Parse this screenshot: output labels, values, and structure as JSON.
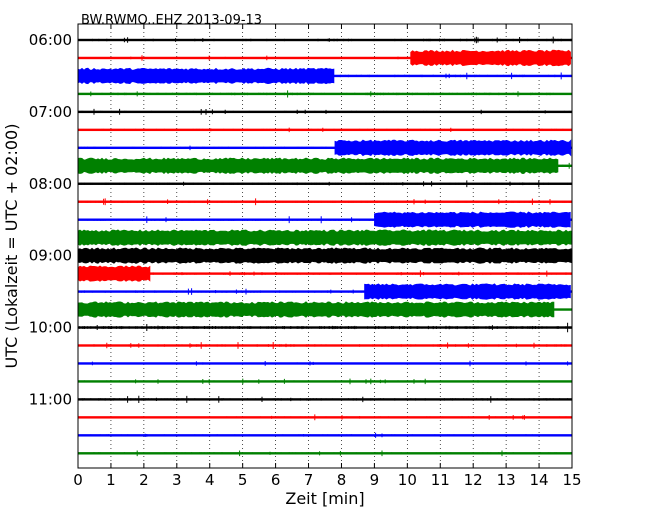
{
  "chart_data": {
    "type": "line",
    "title": "BW.RWMO..EHZ 2013-09-13",
    "xlabel": "Zeit  [min]",
    "ylabel": "UTC (Lokalzeit = UTC + 02:00)",
    "xlim": [
      0,
      15
    ],
    "xticks": [
      "0",
      "1",
      "2",
      "3",
      "4",
      "5",
      "6",
      "7",
      "8",
      "9",
      "10",
      "11",
      "12",
      "13",
      "14",
      "15"
    ],
    "ytick_labels": [
      "06:00",
      "07:00",
      "08:00",
      "09:00",
      "10:00",
      "11:00"
    ],
    "grid_x": true,
    "grid_y": false,
    "trace_colors": [
      "#000000",
      "#ff0000",
      "#0000ff",
      "#008000"
    ],
    "traces": [
      {
        "time": "06:00",
        "color": "#000000",
        "base": 0.6,
        "bands": []
      },
      {
        "time": "06:15",
        "color": "#ff0000",
        "base": 0.5,
        "bands": [
          {
            "x": [
              10.1,
              15
            ],
            "a": 7
          }
        ]
      },
      {
        "time": "06:30",
        "color": "#0000ff",
        "base": 0.6,
        "bands": [
          {
            "x": [
              0,
              7.8
            ],
            "a": 7
          }
        ]
      },
      {
        "time": "06:45",
        "color": "#008000",
        "base": 0.6,
        "bands": []
      },
      {
        "time": "07:00",
        "color": "#000000",
        "base": 0.5,
        "bands": []
      },
      {
        "time": "07:15",
        "color": "#ff0000",
        "base": 0.5,
        "bands": []
      },
      {
        "time": "07:30",
        "color": "#0000ff",
        "base": 0.5,
        "bands": [
          {
            "x": [
              7.8,
              15
            ],
            "a": 7
          }
        ]
      },
      {
        "time": "07:45",
        "color": "#008000",
        "base": 0.6,
        "bands": [
          {
            "x": [
              0,
              14.6
            ],
            "a": 7
          }
        ]
      },
      {
        "time": "08:00",
        "color": "#000000",
        "base": 0.6,
        "bands": []
      },
      {
        "time": "08:15",
        "color": "#ff0000",
        "base": 0.6,
        "bands": []
      },
      {
        "time": "08:30",
        "color": "#0000ff",
        "base": 0.6,
        "bands": [
          {
            "x": [
              9.0,
              15
            ],
            "a": 7
          }
        ]
      },
      {
        "time": "08:45",
        "color": "#008000",
        "base": 0.6,
        "bands": [
          {
            "x": [
              0,
              15
            ],
            "a": 7
          }
        ]
      },
      {
        "time": "09:00",
        "color": "#000000",
        "base": 0.6,
        "bands": [
          {
            "x": [
              0,
              15
            ],
            "a": 7
          }
        ]
      },
      {
        "time": "09:15",
        "color": "#ff0000",
        "base": 0.6,
        "bands": [
          {
            "x": [
              0,
              2.2
            ],
            "a": 7
          }
        ]
      },
      {
        "time": "09:30",
        "color": "#0000ff",
        "base": 0.6,
        "bands": [
          {
            "x": [
              8.7,
              15
            ],
            "a": 7
          }
        ]
      },
      {
        "time": "09:45",
        "color": "#008000",
        "base": 0.6,
        "bands": [
          {
            "x": [
              0,
              14.5
            ],
            "a": 7
          }
        ]
      },
      {
        "time": "10:00",
        "color": "#000000",
        "base": 0.8,
        "bands": []
      },
      {
        "time": "10:15",
        "color": "#ff0000",
        "base": 0.6,
        "bands": []
      },
      {
        "time": "10:30",
        "color": "#0000ff",
        "base": 0.5,
        "bands": []
      },
      {
        "time": "10:45",
        "color": "#008000",
        "base": 0.5,
        "bands": []
      },
      {
        "time": "11:00",
        "color": "#000000",
        "base": 0.6,
        "bands": []
      },
      {
        "time": "11:15",
        "color": "#ff0000",
        "base": 0.5,
        "bands": []
      },
      {
        "time": "11:30",
        "color": "#0000ff",
        "base": 0.5,
        "bands": []
      },
      {
        "time": "11:45",
        "color": "#008000",
        "base": 0.5,
        "bands": []
      }
    ]
  }
}
